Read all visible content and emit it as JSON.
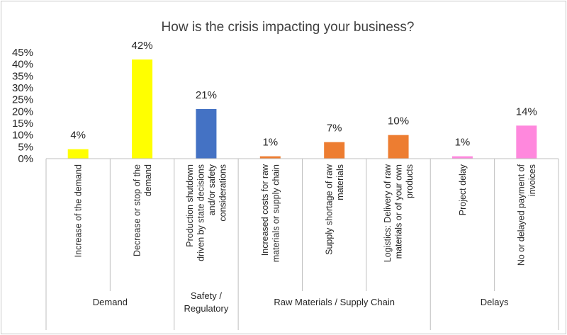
{
  "chart_data": {
    "type": "bar",
    "title": "How is the crisis impacting your business?",
    "ylim": [
      0,
      45
    ],
    "yticks": [
      "0%",
      "5%",
      "10%",
      "15%",
      "20%",
      "25%",
      "30%",
      "35%",
      "40%",
      "45%"
    ],
    "grid": false,
    "legend": "none",
    "categories": [
      {
        "lines": [
          "Increase of the demand"
        ],
        "value": 4,
        "label": "4%",
        "color": "#FFFF00"
      },
      {
        "lines": [
          "Decrease or stop of the",
          "demand"
        ],
        "value": 42,
        "label": "42%",
        "color": "#FFFF00"
      },
      {
        "lines": [
          "Production shutdown",
          "driven by state decisions",
          "and/or safety",
          "considerations"
        ],
        "value": 21,
        "label": "21%",
        "color": "#4472C4"
      },
      {
        "lines": [
          "Increased costs for raw",
          "materials or supply chain"
        ],
        "value": 1,
        "label": "1%",
        "color": "#ED7D31"
      },
      {
        "lines": [
          "Supply shortage of raw",
          "materials"
        ],
        "value": 7,
        "label": "7%",
        "color": "#ED7D31"
      },
      {
        "lines": [
          "Logistics: Delivery of raw",
          "materials or of your own",
          "products"
        ],
        "value": 10,
        "label": "10%",
        "color": "#ED7D31"
      },
      {
        "lines": [
          "Project delay"
        ],
        "value": 1,
        "label": "1%",
        "color": "#FF88DD"
      },
      {
        "lines": [
          "No or delayed payment of",
          "invoices"
        ],
        "value": 14,
        "label": "14%",
        "color": "#FF88DD"
      }
    ],
    "groups": [
      {
        "lines": [
          "Demand"
        ],
        "start": 0,
        "end": 1
      },
      {
        "lines": [
          "Safety /",
          "Regulatory"
        ],
        "start": 2,
        "end": 2
      },
      {
        "lines": [
          "Raw Materials / Supply  Chain"
        ],
        "start": 3,
        "end": 5
      },
      {
        "lines": [
          "Delays"
        ],
        "start": 6,
        "end": 7
      }
    ]
  }
}
